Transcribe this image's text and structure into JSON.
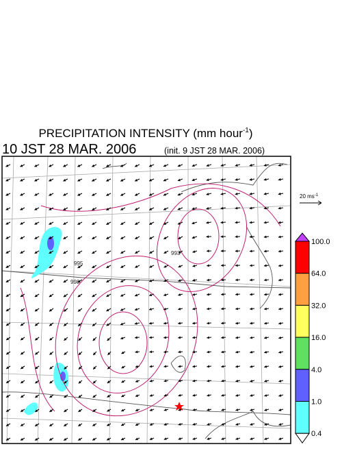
{
  "header": {
    "title": {
      "text": "PRECIPITATION INTENSITY (mm hour",
      "sup": "-1",
      "close": ")"
    },
    "valid_time": "10 JST 28 MAR. 2006",
    "init_time": "(init. 9 JST 28 MAR. 2006)"
  },
  "wind_scale": {
    "text": "20 ms",
    "sup": "-1"
  },
  "map": {
    "contour_labels": [
      "995",
      "993",
      "998"
    ]
  },
  "legend": {
    "levels": [
      {
        "label": "100.0",
        "color": "#ff0000"
      },
      {
        "label": "64.0",
        "color": "#ffa040"
      },
      {
        "label": "32.0",
        "color": "#ffff60"
      },
      {
        "label": "16.0",
        "color": "#60e060"
      },
      {
        "label": "4.0",
        "color": "#6060ff"
      },
      {
        "label": "1.0",
        "color": "#60ffff"
      },
      {
        "label": "0.4",
        "color": "#ffffff"
      }
    ],
    "top_color": "#c040ff"
  }
}
